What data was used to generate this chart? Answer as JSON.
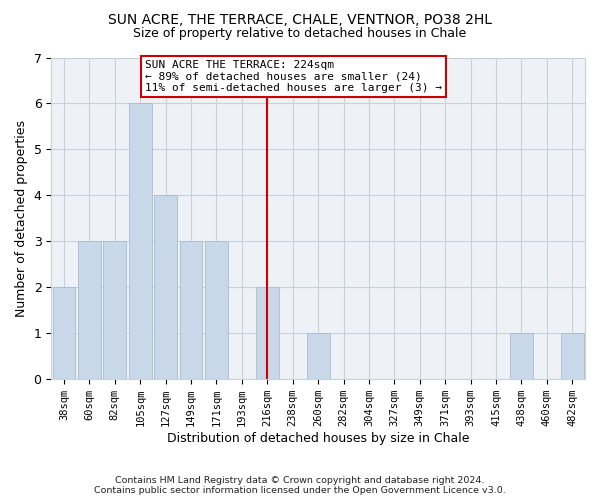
{
  "title": "SUN ACRE, THE TERRACE, CHALE, VENTNOR, PO38 2HL",
  "subtitle": "Size of property relative to detached houses in Chale",
  "xlabel": "Distribution of detached houses by size in Chale",
  "ylabel": "Number of detached properties",
  "bar_labels": [
    "38sqm",
    "60sqm",
    "82sqm",
    "105sqm",
    "127sqm",
    "149sqm",
    "171sqm",
    "193sqm",
    "216sqm",
    "238sqm",
    "260sqm",
    "282sqm",
    "304sqm",
    "327sqm",
    "349sqm",
    "371sqm",
    "393sqm",
    "415sqm",
    "438sqm",
    "460sqm",
    "482sqm"
  ],
  "bar_values": [
    2,
    3,
    3,
    6,
    4,
    3,
    3,
    0,
    2,
    0,
    1,
    0,
    0,
    0,
    0,
    0,
    0,
    0,
    1,
    0,
    1
  ],
  "bar_color": "#c8d8e8",
  "bar_edge_color": "#a8bccf",
  "vline_x": 8,
  "vline_color": "#cc0000",
  "annotation_text": "SUN ACRE THE TERRACE: 224sqm\n← 89% of detached houses are smaller (24)\n11% of semi-detached houses are larger (3) →",
  "annotation_box_color": "#cc0000",
  "ylim": [
    0,
    7
  ],
  "yticks": [
    0,
    1,
    2,
    3,
    4,
    5,
    6,
    7
  ],
  "grid_color": "#c8d0da",
  "background_color": "#eef2f6",
  "footer": "Contains HM Land Registry data © Crown copyright and database right 2024.\nContains public sector information licensed under the Open Government Licence v3.0."
}
